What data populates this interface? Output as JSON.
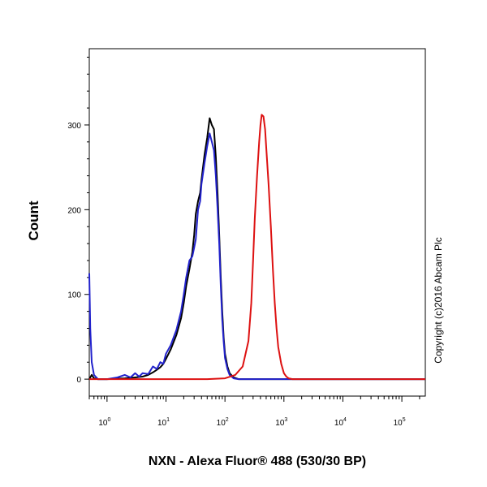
{
  "chart_data": {
    "type": "line",
    "title": "",
    "xlabel": "NXN - Alexa Fluor® 488 (530/30 BP)",
    "ylabel": "Count",
    "xscale": "log",
    "xlim": [
      0.5,
      250000
    ],
    "ylim": [
      -20,
      390
    ],
    "grid": false,
    "legend": "none",
    "x_ticks": [
      {
        "base": "10",
        "exp": "0",
        "value": 1
      },
      {
        "base": "10",
        "exp": "1",
        "value": 10
      },
      {
        "base": "10",
        "exp": "2",
        "value": 100
      },
      {
        "base": "10",
        "exp": "3",
        "value": 1000
      },
      {
        "base": "10",
        "exp": "4",
        "value": 10000
      },
      {
        "base": "10",
        "exp": "5",
        "value": 100000
      }
    ],
    "y_ticks": [
      {
        "label": "0",
        "value": 0
      },
      {
        "label": "100",
        "value": 100
      },
      {
        "label": "200",
        "value": 200
      },
      {
        "label": "300",
        "value": 300
      }
    ],
    "annotation": "Copyright (c)2016 Abcam Plc",
    "series": [
      {
        "color": "#000000",
        "points": [
          [
            0.5,
            0
          ],
          [
            0.55,
            5
          ],
          [
            0.6,
            1
          ],
          [
            0.7,
            0
          ],
          [
            1,
            0
          ],
          [
            2,
            1
          ],
          [
            3,
            2
          ],
          [
            4,
            3
          ],
          [
            5,
            5
          ],
          [
            6,
            8
          ],
          [
            7,
            11
          ],
          [
            8,
            14
          ],
          [
            9,
            18
          ],
          [
            10,
            24
          ],
          [
            12,
            35
          ],
          [
            15,
            52
          ],
          [
            18,
            72
          ],
          [
            20,
            90
          ],
          [
            22,
            110
          ],
          [
            25,
            130
          ],
          [
            28,
            150
          ],
          [
            30,
            170
          ],
          [
            32,
            195
          ],
          [
            35,
            210
          ],
          [
            38,
            220
          ],
          [
            40,
            235
          ],
          [
            45,
            265
          ],
          [
            50,
            285
          ],
          [
            55,
            308
          ],
          [
            60,
            300
          ],
          [
            65,
            295
          ],
          [
            70,
            262
          ],
          [
            75,
            218
          ],
          [
            80,
            170
          ],
          [
            85,
            120
          ],
          [
            90,
            80
          ],
          [
            95,
            50
          ],
          [
            100,
            30
          ],
          [
            110,
            15
          ],
          [
            120,
            7
          ],
          [
            140,
            2
          ],
          [
            170,
            0
          ],
          [
            300,
            0
          ],
          [
            1000,
            0
          ],
          [
            10000,
            0
          ],
          [
            100000,
            0
          ],
          [
            250000,
            0
          ]
        ]
      },
      {
        "color": "#2222cc",
        "points": [
          [
            0.5,
            125
          ],
          [
            0.52,
            60
          ],
          [
            0.55,
            20
          ],
          [
            0.6,
            5
          ],
          [
            0.7,
            0
          ],
          [
            1,
            0
          ],
          [
            1.5,
            2
          ],
          [
            2,
            5
          ],
          [
            2.5,
            2
          ],
          [
            3,
            7
          ],
          [
            3.5,
            3
          ],
          [
            4,
            7
          ],
          [
            5,
            6
          ],
          [
            6,
            15
          ],
          [
            7,
            12
          ],
          [
            8,
            20
          ],
          [
            9,
            18
          ],
          [
            10,
            30
          ],
          [
            12,
            40
          ],
          [
            15,
            58
          ],
          [
            18,
            80
          ],
          [
            20,
            100
          ],
          [
            22,
            120
          ],
          [
            25,
            140
          ],
          [
            28,
            145
          ],
          [
            30,
            155
          ],
          [
            32,
            165
          ],
          [
            35,
            200
          ],
          [
            38,
            210
          ],
          [
            40,
            230
          ],
          [
            45,
            255
          ],
          [
            50,
            275
          ],
          [
            55,
            290
          ],
          [
            60,
            280
          ],
          [
            65,
            270
          ],
          [
            70,
            240
          ],
          [
            75,
            200
          ],
          [
            80,
            160
          ],
          [
            85,
            110
          ],
          [
            90,
            70
          ],
          [
            95,
            45
          ],
          [
            100,
            25
          ],
          [
            110,
            12
          ],
          [
            120,
            5
          ],
          [
            140,
            1
          ],
          [
            170,
            0
          ],
          [
            300,
            0
          ],
          [
            1000,
            0
          ],
          [
            10000,
            0
          ],
          [
            100000,
            0
          ],
          [
            250000,
            0
          ]
        ]
      },
      {
        "color": "#dd1111",
        "points": [
          [
            0.5,
            0
          ],
          [
            1,
            0
          ],
          [
            10,
            0
          ],
          [
            50,
            0
          ],
          [
            100,
            1
          ],
          [
            150,
            5
          ],
          [
            200,
            15
          ],
          [
            250,
            45
          ],
          [
            280,
            90
          ],
          [
            300,
            140
          ],
          [
            320,
            190
          ],
          [
            350,
            240
          ],
          [
            380,
            280
          ],
          [
            400,
            300
          ],
          [
            420,
            312
          ],
          [
            450,
            310
          ],
          [
            480,
            295
          ],
          [
            500,
            275
          ],
          [
            550,
            230
          ],
          [
            600,
            180
          ],
          [
            650,
            130
          ],
          [
            700,
            90
          ],
          [
            750,
            60
          ],
          [
            800,
            38
          ],
          [
            900,
            18
          ],
          [
            1000,
            7
          ],
          [
            1100,
            3
          ],
          [
            1200,
            1
          ],
          [
            1400,
            0
          ],
          [
            10000,
            0
          ],
          [
            250000,
            0
          ]
        ]
      }
    ]
  }
}
